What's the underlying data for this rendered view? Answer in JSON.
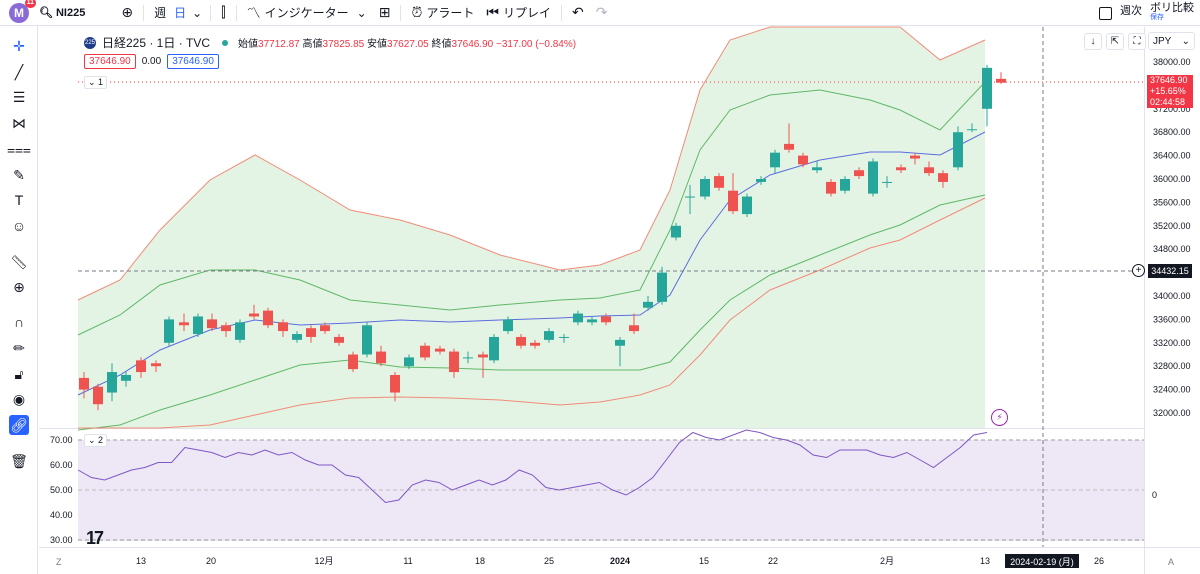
{
  "topbar": {
    "avatar_letter": "M",
    "avatar_badge": "11",
    "symbol": "NI225",
    "interval_week": "週",
    "interval_day": "日",
    "indicators": "インジケーター",
    "alert": "アラート",
    "replay": "リプレイ",
    "weekly_label": "週次",
    "compare_label": "ボリ比較",
    "compare_sub": "保存"
  },
  "legend": {
    "symbol_icon": "225",
    "title": "日経225 · 1日 · TVC",
    "open_label": "始値",
    "open": "37712.87",
    "high_label": "高値",
    "high": "37825.85",
    "low_label": "安値",
    "low": "37627.05",
    "close_label": "終値",
    "close": "37646.90",
    "change": "−317.00 (−0.84%)",
    "bid": "37646.90",
    "spread": "0.00",
    "ask": "37646.90",
    "pane1": "1",
    "pane2": "2"
  },
  "currency": "JPY",
  "price_axis": [
    "38000.00",
    "37600.00",
    "37200.00",
    "36800.00",
    "36400.00",
    "36000.00",
    "35600.00",
    "35200.00",
    "34800.00",
    "34400.00",
    "34000.00",
    "33600.00",
    "33200.00",
    "32800.00",
    "32400.00",
    "32000.00"
  ],
  "price_badge": {
    "price": "37646.90",
    "change": "+15.65%",
    "time": "02:44:58"
  },
  "crosshair_price": "34432.15",
  "crosshair_date": "2024-02-19 (月)",
  "rsi_axis": [
    "70.00",
    "60.00",
    "50.00",
    "40.00",
    "30.00"
  ],
  "rsi_right_value": "0",
  "time_axis": [
    "13",
    "20",
    "12月",
    "11",
    "18",
    "25",
    "2024",
    "15",
    "22",
    "2月",
    "13",
    "26"
  ],
  "bottom_left": "Z",
  "bottom_right": "A",
  "colors": {
    "up": "#26a69a",
    "down": "#ef5350",
    "bb_outer": "#f28b78",
    "bb_mid": "#5fb868",
    "basis": "#5b6de0",
    "rsi": "#7e57c2"
  }
}
